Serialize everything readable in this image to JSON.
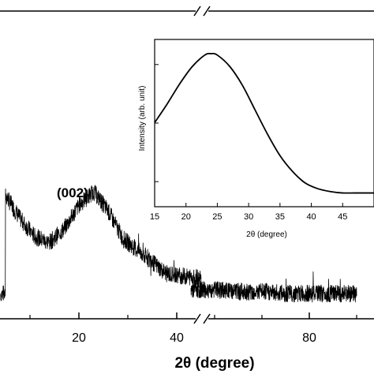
{
  "chart_data": [
    {
      "type": "line",
      "role": "main",
      "xlabel": "2θ (degree)",
      "ylabel": "",
      "xlim": [
        5,
        90
      ],
      "axis_break": [
        45,
        55
      ],
      "x_ticks": [
        20,
        40,
        80
      ],
      "x_tick_labels": [
        "20",
        "40",
        "80"
      ],
      "annotations": [
        {
          "text": "(002)",
          "x": 23
        }
      ],
      "series": [
        {
          "x": [
            5,
            8,
            11,
            14,
            17,
            20,
            23,
            26,
            29,
            32,
            35,
            38,
            41,
            44,
            45,
            55,
            60,
            65,
            70,
            75,
            80,
            85,
            90
          ],
          "y": [
            0.58,
            0.46,
            0.37,
            0.34,
            0.41,
            0.53,
            0.6,
            0.5,
            0.36,
            0.3,
            0.24,
            0.18,
            0.17,
            0.16,
            0.15,
            0.1,
            0.1,
            0.09,
            0.09,
            0.08,
            0.08,
            0.08,
            0.08
          ]
        }
      ]
    },
    {
      "type": "line",
      "role": "inset",
      "xlabel": "2θ (degree)",
      "ylabel": "Intensity (arb. unit)",
      "xlim": [
        15,
        50
      ],
      "x_ticks": [
        15,
        20,
        25,
        30,
        35,
        40,
        45
      ],
      "x_tick_labels": [
        "15",
        "20",
        "25",
        "30",
        "35",
        "40",
        "45"
      ],
      "series": [
        {
          "x": [
            15,
            17,
            19,
            21,
            23,
            24,
            25,
            27,
            29,
            31,
            33,
            35,
            37,
            39,
            41,
            43,
            45,
            47,
            50
          ],
          "y": [
            0.52,
            0.65,
            0.79,
            0.91,
            0.99,
            1.0,
            0.99,
            0.91,
            0.78,
            0.61,
            0.44,
            0.29,
            0.18,
            0.1,
            0.06,
            0.04,
            0.03,
            0.03,
            0.03
          ]
        }
      ]
    }
  ]
}
